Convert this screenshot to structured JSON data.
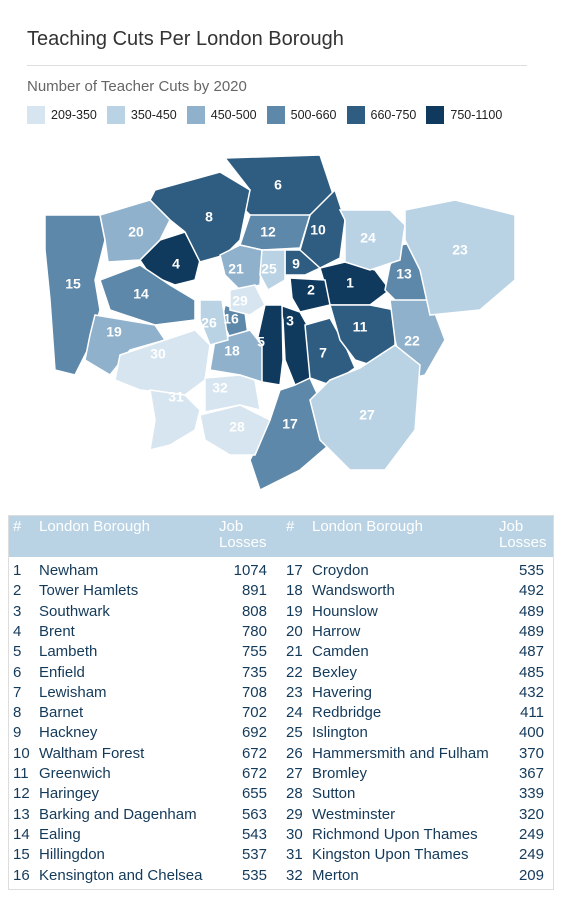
{
  "header": {
    "title": "Teaching Cuts Per London Borough",
    "subtitle": "Number of Teacher Cuts by 2020"
  },
  "legend": [
    {
      "label": "209-350",
      "color": "#d6e5ef"
    },
    {
      "label": "350-450",
      "color": "#b9d3e5"
    },
    {
      "label": "450-500",
      "color": "#8fb1cc"
    },
    {
      "label": "500-660",
      "color": "#5e88a9"
    },
    {
      "label": "660-750",
      "color": "#2f5d81"
    },
    {
      "label": "750-1100",
      "color": "#0f3a5e"
    }
  ],
  "table": {
    "columns": [
      "#",
      "London Borough",
      "Job Losses"
    ],
    "rows": [
      [
        1,
        "Newham",
        1074
      ],
      [
        2,
        "Tower Hamlets",
        891
      ],
      [
        3,
        "Southwark",
        808
      ],
      [
        4,
        "Brent",
        780
      ],
      [
        5,
        "Lambeth",
        755
      ],
      [
        6,
        "Enfield",
        735
      ],
      [
        7,
        "Lewisham",
        708
      ],
      [
        8,
        "Barnet",
        702
      ],
      [
        9,
        "Hackney",
        692
      ],
      [
        10,
        "Waltham Forest",
        672
      ],
      [
        11,
        "Greenwich",
        672
      ],
      [
        12,
        "Haringey",
        655
      ],
      [
        13,
        "Barking and Dagenham",
        563
      ],
      [
        14,
        "Ealing",
        543
      ],
      [
        15,
        "Hillingdon",
        537
      ],
      [
        16,
        "Kensington and Chelsea",
        535
      ],
      [
        17,
        "Croydon",
        535
      ],
      [
        18,
        "Wandsworth",
        492
      ],
      [
        19,
        "Hounslow",
        489
      ],
      [
        20,
        "Harrow",
        489
      ],
      [
        21,
        "Camden",
        487
      ],
      [
        22,
        "Bexley",
        485
      ],
      [
        23,
        "Havering",
        432
      ],
      [
        24,
        "Redbridge",
        411
      ],
      [
        25,
        "Islington",
        400
      ],
      [
        26,
        "Hammersmith and Fulham",
        370
      ],
      [
        27,
        "Bromley",
        367
      ],
      [
        28,
        "Sutton",
        339
      ],
      [
        29,
        "Westminster",
        320
      ],
      [
        30,
        "Richmond Upon Thames",
        249
      ],
      [
        31,
        "Kingston Upon Thames",
        249
      ],
      [
        32,
        "Merton",
        209
      ]
    ]
  }
}
